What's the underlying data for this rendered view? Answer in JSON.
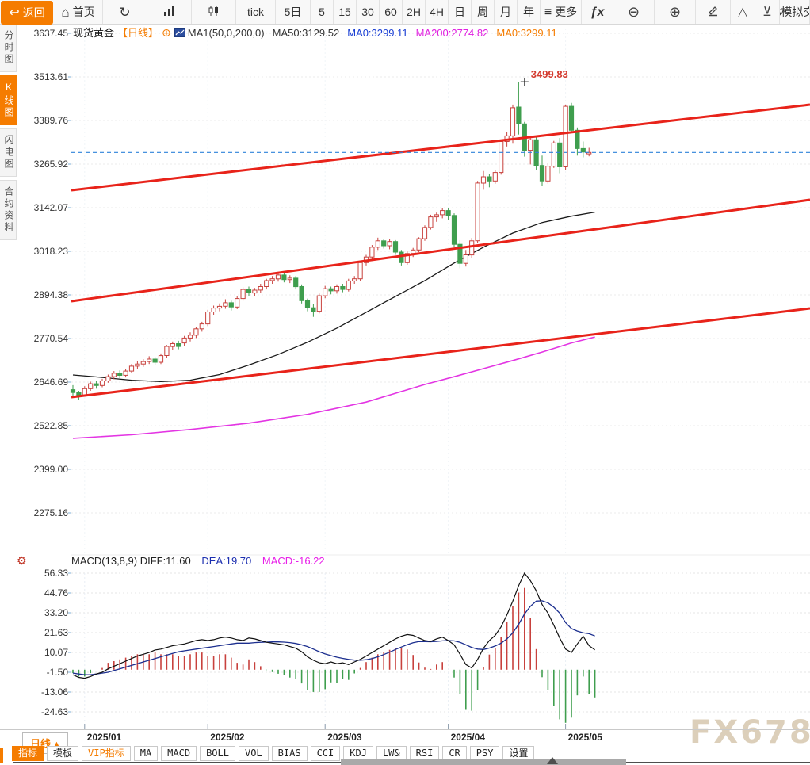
{
  "toolbar": {
    "items": [
      {
        "name": "back-button",
        "label": "返回",
        "icon": "back-arrow",
        "accent": true
      },
      {
        "name": "home-button",
        "label": "首页",
        "icon": "home"
      },
      {
        "name": "refresh-button",
        "icon": "refresh"
      },
      {
        "name": "bar-chart-button",
        "icon": "bar-chart"
      },
      {
        "name": "candlestick-button",
        "icon": "candlestick"
      },
      {
        "name": "tick-button",
        "label": "tick"
      },
      {
        "name": "period-5day-button",
        "label": "5日"
      },
      {
        "name": "period-5-button",
        "label": "5"
      },
      {
        "name": "period-15-button",
        "label": "15"
      },
      {
        "name": "period-30-button",
        "label": "30"
      },
      {
        "name": "period-60-button",
        "label": "60"
      },
      {
        "name": "period-2h-button",
        "label": "2H"
      },
      {
        "name": "period-4h-button",
        "label": "4H"
      },
      {
        "name": "period-day-button",
        "label": "日"
      },
      {
        "name": "period-week-button",
        "label": "周"
      },
      {
        "name": "period-month-button",
        "label": "月"
      },
      {
        "name": "period-year-button",
        "label": "年"
      },
      {
        "name": "more-button",
        "label": "更多",
        "icon": "menu"
      },
      {
        "name": "formula-button",
        "icon": "fx"
      },
      {
        "name": "zoom-out-button",
        "icon": "zoom-out"
      },
      {
        "name": "zoom-in-button",
        "icon": "zoom-in"
      },
      {
        "name": "draw-button",
        "icon": "pencil"
      },
      {
        "name": "shape-triangle-button",
        "icon": "triangle"
      },
      {
        "name": "send-bottom-button",
        "icon": "xor"
      },
      {
        "name": "sim-trade-button",
        "label": "$模拟交"
      }
    ]
  },
  "sidebar": {
    "tabs": [
      {
        "name": "tab-time-chart",
        "label": "分时图",
        "active": false
      },
      {
        "name": "tab-kline-chart",
        "label": "K线图",
        "active": true
      },
      {
        "name": "tab-lightning-chart",
        "label": "闪电图",
        "active": false
      },
      {
        "name": "tab-contract-info",
        "label": "合约资料",
        "active": false
      }
    ]
  },
  "chart_header": {
    "symbol": "现货黄金",
    "period": "【日线】",
    "ma_settings": "MA1(50,0,200,0)",
    "values": [
      {
        "text": "MA50:3129.52",
        "color": "#333333"
      },
      {
        "text": "MA0:3299.11",
        "color": "#1a3fd4"
      },
      {
        "text": "MA200:2774.82",
        "color": "#e020e0"
      },
      {
        "text": "MA0:3299.11",
        "color": "#f57c00"
      }
    ]
  },
  "macd_panel": {
    "header": {
      "title_and_diff": "MACD(13,8,9) DIFF:11.60",
      "dea_label": "DEA:19.70",
      "macd_label": "MACD:-16.22"
    }
  },
  "bottom_bar": {
    "period_button": "日线",
    "indicator_tabs": [
      {
        "name": "tab-indicator",
        "label": "指标",
        "active": true
      },
      {
        "name": "tab-template",
        "label": "模板"
      },
      {
        "name": "tab-vip-indicator",
        "label": "VIP指标",
        "vip": true
      },
      {
        "name": "tab-ma",
        "label": "MA"
      },
      {
        "name": "tab-macd",
        "label": "MACD"
      },
      {
        "name": "tab-boll",
        "label": "BOLL"
      },
      {
        "name": "tab-vol",
        "label": "VOL"
      },
      {
        "name": "tab-bias",
        "label": "BIAS"
      },
      {
        "name": "tab-cci",
        "label": "CCI"
      },
      {
        "name": "tab-kdj",
        "label": "KDJ"
      },
      {
        "name": "tab-lw",
        "label": "LW&"
      },
      {
        "name": "tab-rsi",
        "label": "RSI"
      },
      {
        "name": "tab-cr",
        "label": "CR"
      },
      {
        "name": "tab-psy",
        "label": "PSY"
      },
      {
        "name": "tab-settings",
        "label": "设置"
      }
    ]
  },
  "watermark": "FX678",
  "colors": {
    "accent_orange": "#f57c00",
    "candle_up": "#c8413d",
    "candle_down": "#3f9e4e",
    "channel_red": "#e8231a",
    "ma50": "#1a1a1a",
    "ma200": "#e335e3",
    "price_line_blue": "#2f82d9",
    "diff_line": "#111111",
    "dea_line": "#1c2f8f",
    "hist_up": "#c8413d",
    "hist_down": "#3f9e4e"
  },
  "chart_data": {
    "type": "candlestick",
    "title": "现货黄金 日线",
    "price_axis": {
      "ticks": [
        3637.45,
        3513.61,
        3389.76,
        3265.92,
        3142.07,
        3018.23,
        2894.38,
        2770.54,
        2646.69,
        2522.85,
        2399.0,
        2275.16
      ]
    },
    "month_starts": [
      {
        "label": "2025/01",
        "index": 2
      },
      {
        "label": "2025/02",
        "index": 23
      },
      {
        "label": "2025/03",
        "index": 43
      },
      {
        "label": "2025/04",
        "index": 64
      },
      {
        "label": "2025/05",
        "index": 84
      }
    ],
    "candles": [
      [
        2625,
        2638,
        2608,
        2617
      ],
      [
        2617,
        2622,
        2596,
        2608
      ],
      [
        2608,
        2635,
        2605,
        2628
      ],
      [
        2628,
        2648,
        2622,
        2642
      ],
      [
        2642,
        2650,
        2628,
        2637
      ],
      [
        2637,
        2656,
        2632,
        2650
      ],
      [
        2650,
        2668,
        2645,
        2662
      ],
      [
        2662,
        2678,
        2655,
        2672
      ],
      [
        2672,
        2680,
        2658,
        2666
      ],
      [
        2666,
        2684,
        2660,
        2678
      ],
      [
        2678,
        2698,
        2672,
        2692
      ],
      [
        2692,
        2706,
        2685,
        2698
      ],
      [
        2698,
        2712,
        2690,
        2705
      ],
      [
        2705,
        2720,
        2698,
        2712
      ],
      [
        2712,
        2718,
        2694,
        2703
      ],
      [
        2703,
        2728,
        2698,
        2722
      ],
      [
        2722,
        2752,
        2716,
        2748
      ],
      [
        2748,
        2762,
        2738,
        2756
      ],
      [
        2756,
        2764,
        2740,
        2748
      ],
      [
        2758,
        2778,
        2750,
        2772
      ],
      [
        2772,
        2788,
        2762,
        2780
      ],
      [
        2780,
        2804,
        2772,
        2798
      ],
      [
        2798,
        2818,
        2790,
        2812
      ],
      [
        2812,
        2852,
        2806,
        2846
      ],
      [
        2846,
        2864,
        2838,
        2857
      ],
      [
        2857,
        2870,
        2848,
        2862
      ],
      [
        2862,
        2882,
        2855,
        2872
      ],
      [
        2872,
        2878,
        2850,
        2860
      ],
      [
        2860,
        2890,
        2854,
        2884
      ],
      [
        2884,
        2916,
        2878,
        2910
      ],
      [
        2910,
        2918,
        2892,
        2900
      ],
      [
        2900,
        2914,
        2890,
        2908
      ],
      [
        2908,
        2926,
        2900,
        2918
      ],
      [
        2918,
        2940,
        2910,
        2935
      ],
      [
        2935,
        2948,
        2926,
        2940
      ],
      [
        2940,
        2956,
        2932,
        2951
      ],
      [
        2951,
        2956,
        2930,
        2938
      ],
      [
        2938,
        2950,
        2928,
        2942
      ],
      [
        2942,
        2948,
        2910,
        2918
      ],
      [
        2918,
        2924,
        2870,
        2878
      ],
      [
        2878,
        2884,
        2848,
        2858
      ],
      [
        2858,
        2868,
        2832,
        2848
      ],
      [
        2848,
        2898,
        2842,
        2892
      ],
      [
        2892,
        2920,
        2885,
        2912
      ],
      [
        2912,
        2918,
        2896,
        2906
      ],
      [
        2906,
        2924,
        2898,
        2918
      ],
      [
        2918,
        2926,
        2902,
        2910
      ],
      [
        2910,
        2940,
        2904,
        2934
      ],
      [
        2934,
        2948,
        2926,
        2940
      ],
      [
        2940,
        2992,
        2934,
        2986
      ],
      [
        2986,
        3008,
        2978,
        3002
      ],
      [
        3002,
        3036,
        2996,
        3030
      ],
      [
        3030,
        3057,
        3022,
        3048
      ],
      [
        3048,
        3052,
        3026,
        3034
      ],
      [
        3034,
        3052,
        3024,
        3046
      ],
      [
        3046,
        3050,
        3008,
        3016
      ],
      [
        3016,
        3022,
        2978,
        2986
      ],
      [
        2986,
        3018,
        2980,
        3012
      ],
      [
        3012,
        3028,
        3002,
        3022
      ],
      [
        3022,
        3058,
        3016,
        3054
      ],
      [
        3054,
        3092,
        3048,
        3086
      ],
      [
        3086,
        3122,
        3080,
        3116
      ],
      [
        3116,
        3128,
        3102,
        3122
      ],
      [
        3122,
        3140,
        3112,
        3134
      ],
      [
        3134,
        3142,
        3108,
        3120
      ],
      [
        3120,
        3126,
        3030,
        3038
      ],
      [
        3038,
        3050,
        2970,
        2984
      ],
      [
        2984,
        3022,
        2975,
        3008
      ],
      [
        3008,
        3056,
        3000,
        3048
      ],
      [
        3048,
        3218,
        3042,
        3212
      ],
      [
        3212,
        3246,
        3193,
        3230
      ],
      [
        3230,
        3238,
        3200,
        3218
      ],
      [
        3218,
        3248,
        3210,
        3242
      ],
      [
        3242,
        3336,
        3236,
        3330
      ],
      [
        3330,
        3358,
        3316,
        3346
      ],
      [
        3346,
        3435,
        3324,
        3426
      ],
      [
        3428,
        3499.83,
        3350,
        3380
      ],
      [
        3380,
        3386,
        3287,
        3305
      ],
      [
        3305,
        3345,
        3265,
        3335
      ],
      [
        3335,
        3342,
        3250,
        3262
      ],
      [
        3262,
        3290,
        3205,
        3218
      ],
      [
        3218,
        3268,
        3210,
        3260
      ],
      [
        3260,
        3332,
        3255,
        3326
      ],
      [
        3326,
        3340,
        3240,
        3258
      ],
      [
        3258,
        3435,
        3250,
        3430
      ],
      [
        3430,
        3440,
        3355,
        3362
      ],
      [
        3362,
        3370,
        3290,
        3310
      ],
      [
        3310,
        3330,
        3285,
        3300
      ],
      [
        3295,
        3312,
        3288,
        3299
      ]
    ],
    "high_marker": {
      "index": 77,
      "price": 3499.83,
      "label": "3499.83"
    },
    "price_line": 3299.11,
    "channel_lines": [
      {
        "price_start": 3191.6,
        "price_end": 3434.8
      },
      {
        "price_start": 2876.4,
        "price_end": 3164.6
      },
      {
        "price_start": 2603.9,
        "price_end": 2856.1
      }
    ],
    "ma50": {
      "period": 50,
      "last": 3129.52,
      "points": [
        [
          0,
          2667
        ],
        [
          5,
          2660
        ],
        [
          10,
          2652
        ],
        [
          15,
          2648
        ],
        [
          20,
          2652
        ],
        [
          25,
          2668
        ],
        [
          30,
          2695
        ],
        [
          35,
          2725
        ],
        [
          40,
          2760
        ],
        [
          45,
          2800
        ],
        [
          50,
          2845
        ],
        [
          55,
          2890
        ],
        [
          60,
          2935
        ],
        [
          65,
          2985
        ],
        [
          70,
          3030
        ],
        [
          75,
          3070
        ],
        [
          80,
          3100
        ],
        [
          85,
          3118
        ],
        [
          89,
          3129.52
        ]
      ]
    },
    "ma200": {
      "period": 200,
      "last": 2774.82,
      "points": [
        [
          0,
          2487
        ],
        [
          10,
          2497
        ],
        [
          20,
          2512
        ],
        [
          30,
          2530
        ],
        [
          40,
          2555
        ],
        [
          50,
          2590
        ],
        [
          55,
          2615
        ],
        [
          60,
          2640
        ],
        [
          65,
          2662
        ],
        [
          70,
          2685
        ],
        [
          75,
          2708
        ],
        [
          80,
          2732
        ],
        [
          85,
          2758
        ],
        [
          89,
          2774.82
        ]
      ]
    },
    "macd": {
      "params": "13,8,9",
      "diff_last": 11.6,
      "dea_last": 19.7,
      "macd_last": -16.22,
      "axis_ticks": [
        56.33,
        44.76,
        33.2,
        21.63,
        10.07,
        -1.5,
        -13.06,
        -24.63
      ],
      "histogram": "2*(diff-dea)",
      "diff": [
        -3,
        -4.5,
        -5,
        -4,
        -2.5,
        -1.5,
        0.5,
        2,
        3.5,
        5,
        6.5,
        8,
        9,
        10,
        11.5,
        12,
        13,
        14,
        14.5,
        15,
        16,
        17,
        17.5,
        17,
        17.5,
        18.5,
        19,
        18.5,
        17.5,
        17,
        18.5,
        18,
        17,
        16,
        15.5,
        15,
        14.5,
        13.5,
        12.5,
        10.5,
        7.5,
        5.5,
        4,
        3.5,
        4.5,
        3.5,
        4,
        3,
        4.5,
        6,
        8,
        10,
        12,
        14,
        16,
        18,
        19.5,
        20.5,
        20,
        18.5,
        17,
        16.5,
        18,
        19,
        17,
        14.5,
        9,
        3,
        1,
        6,
        12.5,
        17,
        20,
        25,
        32,
        40,
        49,
        56.33,
        52,
        46,
        38,
        33,
        26,
        18.5,
        12,
        10,
        15,
        19.5,
        14,
        11.6
      ],
      "dea": [
        -2,
        -2.5,
        -3,
        -3,
        -2.5,
        -2,
        -1.5,
        -0.5,
        0.5,
        1.5,
        2.5,
        3.5,
        4.5,
        5.5,
        6.5,
        7.5,
        8.5,
        9.5,
        10.5,
        11,
        11.5,
        12,
        12.5,
        13,
        13.5,
        14,
        14.5,
        15,
        15.5,
        15.5,
        15.5,
        15.8,
        16,
        16.1,
        16.2,
        16.2,
        16.1,
        15.8,
        15.3,
        14.5,
        13.5,
        12,
        10.5,
        9.2,
        8.2,
        7.3,
        6.6,
        6,
        5.6,
        5.5,
        5.8,
        6.5,
        7.5,
        8.8,
        10.2,
        11.8,
        13.2,
        14.6,
        15.7,
        16.4,
        16.4,
        16.3,
        16.5,
        16.8,
        17,
        16.8,
        16,
        14.5,
        13,
        12,
        11.8,
        12.6,
        13.8,
        15.5,
        18,
        21.5,
        26.5,
        32.5,
        37,
        40,
        40.2,
        39,
        36.5,
        33,
        27.5,
        24,
        22.5,
        21.5,
        21,
        19.7
      ]
    }
  }
}
